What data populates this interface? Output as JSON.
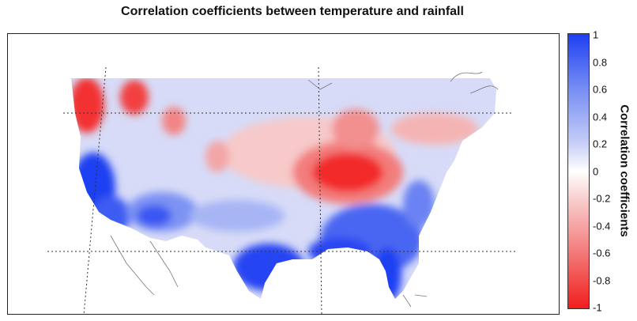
{
  "title": "Correlation coefficients between temperature and rainfall",
  "colorbar": {
    "label": "Correlation coefficients",
    "ticks": [
      "1",
      "0.8",
      "0.6",
      "0.4",
      "0.2",
      "0",
      "-0.2",
      "-0.4",
      "-0.6",
      "-0.8",
      "-1"
    ],
    "range": [
      -1,
      1
    ],
    "colors": {
      "max": "#1f3ff2",
      "mid": "#ffffff",
      "min": "#f21d1d"
    }
  },
  "map": {
    "region": "contiguous United States",
    "features": {
      "positive_regions": [
        "Pacific coast (California)",
        "Southeast and Gulf coast",
        "Southwest interior"
      ],
      "negative_regions": [
        "Ohio Valley / Midwest",
        "Northwest (Washington)",
        "Northern Rockies"
      ]
    }
  }
}
